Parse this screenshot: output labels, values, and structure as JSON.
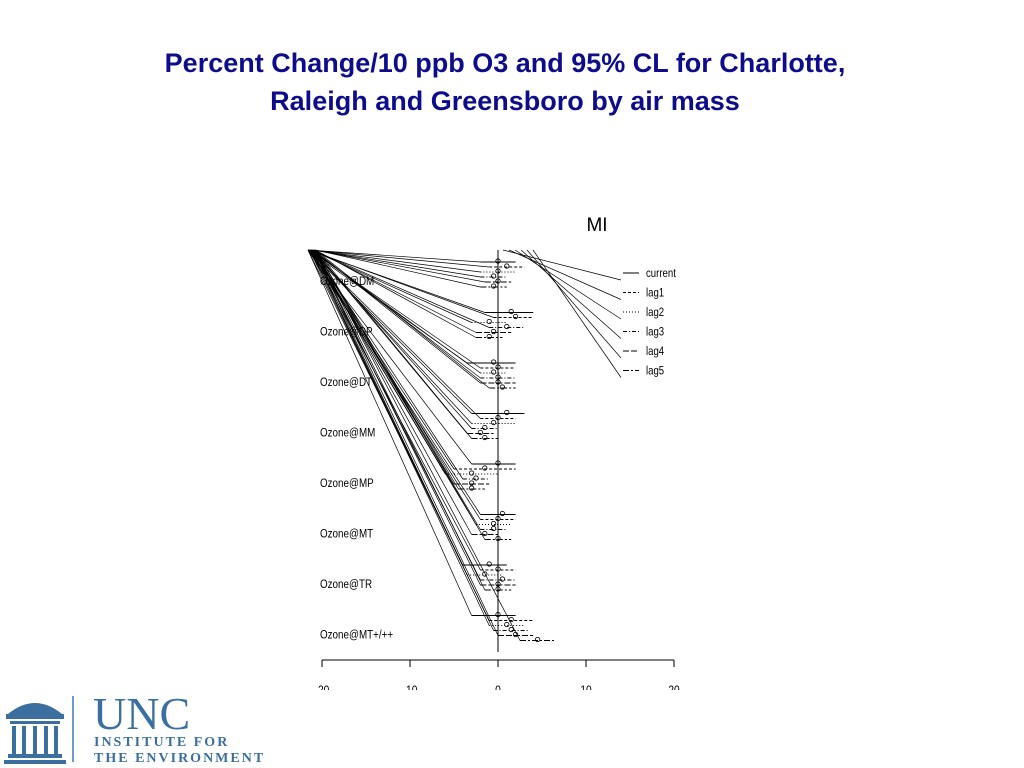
{
  "title": {
    "line1": "Percent Change/10 ppb O3 and 95% CL for Charlotte,",
    "line2": "Raleigh and Greensboro by air mass"
  },
  "logo": {
    "name": "UNC",
    "line1": "INSTITUTE FOR",
    "line2": "THE ENVIRONMENT",
    "color": "#3b6fa0"
  },
  "colors": {
    "title": "#0d0d8c",
    "ink": "#000000"
  },
  "chart_data": {
    "type": "forest",
    "title": "MI",
    "xlim": [
      -20,
      20
    ],
    "xticks": [
      -20,
      -10,
      0,
      10,
      20
    ],
    "reference_line": 0,
    "groups": [
      "Ozone@DM",
      "Ozone@DP",
      "Ozone@DT",
      "Ozone@MM",
      "Ozone@MP",
      "Ozone@MT",
      "Ozone@TR",
      "Ozone@MT+/++"
    ],
    "legend": {
      "position": "top-right",
      "entries": [
        "current",
        "lag1",
        "lag2",
        "lag3",
        "lag4",
        "lag5"
      ],
      "styles": [
        "solid",
        "dashed",
        "dotted",
        "dashdot",
        "longdash",
        "twodash"
      ]
    },
    "series": [
      {
        "name": "current",
        "estimate": [
          0,
          1.5,
          -0.5,
          1,
          0,
          0.5,
          -1,
          0
        ],
        "lower": [
          -2,
          -1.5,
          -3.5,
          -3,
          -3,
          -2,
          -4,
          -3
        ],
        "upper": [
          2,
          4,
          2,
          3,
          2,
          2,
          1,
          2
        ]
      },
      {
        "name": "lag1",
        "estimate": [
          1,
          2,
          0,
          0,
          -1.5,
          0,
          0,
          1.5
        ],
        "lower": [
          -1,
          -0.5,
          -2,
          -2,
          -5,
          -2,
          -2,
          -1
        ],
        "upper": [
          3,
          4,
          2,
          2,
          2,
          2,
          2,
          4
        ]
      },
      {
        "name": "lag2",
        "estimate": [
          0,
          -1,
          -0.5,
          -0.5,
          -3,
          -0.5,
          -1.5,
          1
        ],
        "lower": [
          -2,
          -3,
          -2,
          -3,
          -6,
          -2.5,
          -3.5,
          -1
        ],
        "upper": [
          2,
          1,
          1,
          2,
          0,
          1.5,
          0.5,
          3
        ]
      },
      {
        "name": "lag3",
        "estimate": [
          -0.5,
          1,
          0,
          -1.5,
          -2.5,
          -0.5,
          0.5,
          1.5
        ],
        "lower": [
          -2,
          -1,
          -2,
          -3,
          -4,
          -2,
          -2,
          -0.5
        ],
        "upper": [
          1,
          3,
          2,
          0,
          -1,
          1,
          2,
          3.5
        ]
      },
      {
        "name": "lag4",
        "estimate": [
          0,
          -0.5,
          0,
          -2,
          -3,
          -1.5,
          0,
          2
        ],
        "lower": [
          -1.5,
          -2.5,
          -2,
          -3.5,
          -5,
          -3,
          -2,
          0
        ],
        "upper": [
          1.5,
          1.5,
          2,
          -0.5,
          -1,
          0,
          2,
          4
        ]
      },
      {
        "name": "lag5",
        "estimate": [
          -0.5,
          -1,
          0.5,
          -1.5,
          -3,
          0,
          0,
          4.5
        ],
        "lower": [
          -2,
          -2.5,
          -1,
          -3,
          -4.5,
          -1.5,
          -1.5,
          2.5
        ],
        "upper": [
          1,
          0.5,
          2,
          0,
          -1.5,
          1.5,
          1.5,
          6.5
        ]
      }
    ]
  }
}
